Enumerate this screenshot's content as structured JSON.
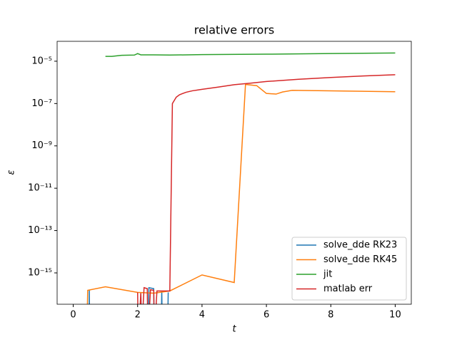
{
  "chart_data": {
    "type": "line",
    "title": "relative errors",
    "xlabel": "t",
    "ylabel": "ε",
    "log_y": true,
    "legend": "lower right",
    "xlim": [
      -0.5,
      10.5
    ],
    "xticks": [
      0,
      2,
      4,
      6,
      8,
      10
    ],
    "ylim": [
      3.3e-17,
      8.7e-05
    ],
    "yticks": [
      {
        "value": 1e-15,
        "label": "10⁻¹⁵"
      },
      {
        "value": 1e-13,
        "label": "10⁻¹³"
      },
      {
        "value": 1e-11,
        "label": "10⁻¹¹"
      },
      {
        "value": 1e-09,
        "label": "10⁻⁹"
      },
      {
        "value": 1e-07,
        "label": "10⁻⁷"
      },
      {
        "value": 1e-05,
        "label": "10⁻⁵"
      }
    ],
    "series": [
      {
        "name": "solve_dde RK23",
        "color": "#1f77b4",
        "x": [
          0.49,
          0.5,
          0.51,
          2.08,
          2.1,
          2.12,
          2.33,
          2.35,
          2.5,
          2.52,
          2.73,
          2.75,
          2.77,
          2.93,
          2.95
        ],
        "values": [
          1e-18,
          1.5e-16,
          1e-18,
          1e-18,
          1.2e-16,
          1e-18,
          1e-18,
          2e-16,
          1.8e-16,
          1e-18,
          1e-18,
          1.3e-16,
          1e-18,
          1e-18,
          1.2e-16
        ]
      },
      {
        "name": "solve_dde RK45",
        "color": "#ff7f0e",
        "x": [
          0.42,
          0.45,
          1,
          2,
          2.5,
          3,
          4,
          5,
          5.35,
          5.7,
          6,
          6.3,
          6.5,
          6.8,
          8,
          10
        ],
        "values": [
          1e-18,
          1.5e-16,
          2.2e-16,
          1.2e-16,
          1.1e-16,
          1.4e-16,
          8e-16,
          3.5e-16,
          8e-07,
          7e-07,
          3e-07,
          2.8e-07,
          3.5e-07,
          4.2e-07,
          4e-07,
          3.6e-07
        ]
      },
      {
        "name": "jit",
        "color": "#2ca02c",
        "x": [
          1,
          1.2,
          1.5,
          1.9,
          2,
          2.1,
          2.5,
          3,
          4,
          6,
          8,
          10
        ],
        "values": [
          1.7e-05,
          1.7e-05,
          1.9e-05,
          1.95e-05,
          2.3e-05,
          2e-05,
          2e-05,
          1.95e-05,
          2.05e-05,
          2.15e-05,
          2.3e-05,
          2.45e-05
        ]
      },
      {
        "name": "matlab err",
        "color": "#d62728",
        "x": [
          2.0,
          2.02,
          2.1,
          2.12,
          2.2,
          2.3,
          2.32,
          2.4,
          2.5,
          2.52,
          2.6,
          3.0,
          3.08,
          3.2,
          3.3,
          3.5,
          3.7,
          4,
          4.5,
          5,
          5.5,
          6,
          7,
          8,
          9,
          10
        ],
        "values": [
          1.2e-16,
          1e-18,
          1.1e-16,
          1e-18,
          2e-16,
          1.8e-16,
          1e-18,
          1.6e-16,
          1.5e-16,
          1e-18,
          1.4e-16,
          1.4e-16,
          1e-07,
          2e-07,
          2.6e-07,
          3.4e-07,
          4e-07,
          4.7e-07,
          6e-07,
          7.8e-07,
          9.2e-07,
          1.1e-06,
          1.4e-06,
          1.7e-06,
          2e-06,
          2.3e-06
        ]
      }
    ]
  }
}
